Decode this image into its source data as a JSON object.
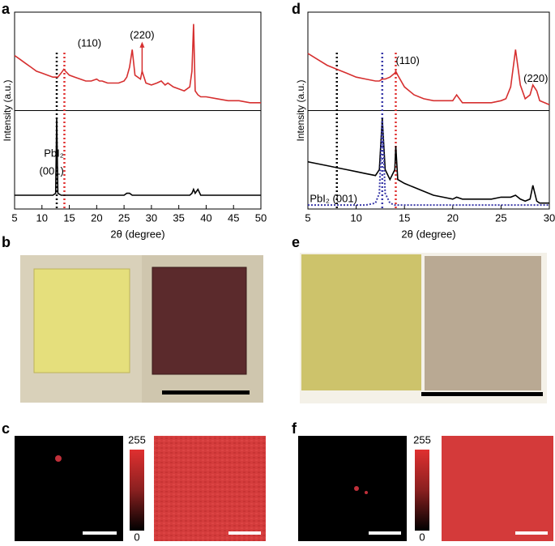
{
  "figure": {
    "panel_labels": [
      "a",
      "b",
      "c",
      "d",
      "e",
      "f"
    ],
    "colorbar": {
      "max": 255,
      "min": 0
    }
  },
  "chart_data": [
    {
      "type": "line",
      "x_label": "2θ (degree)",
      "y_label": "Intensity (a.u.)",
      "x": [
        5,
        6,
        7,
        8,
        9,
        10,
        11,
        12,
        12.5,
        12.7,
        12.9,
        13.5,
        14,
        14.3,
        15,
        16,
        17,
        18,
        19,
        20,
        20.5,
        21,
        22,
        23,
        24,
        25,
        25.5,
        26,
        26.5,
        27,
        28,
        28.3,
        29,
        30,
        31,
        31.8,
        32.5,
        33,
        34,
        35,
        36,
        37,
        37.4,
        37.7,
        38,
        38.5,
        39,
        40,
        42,
        44,
        46,
        48,
        50
      ],
      "xlim": [
        5,
        50
      ],
      "xticks": [
        5,
        10,
        15,
        20,
        25,
        30,
        35,
        40,
        45,
        50
      ],
      "ylim": [
        0,
        100
      ],
      "series": [
        {
          "color": "#d62f2f",
          "values": [
            78,
            76,
            74,
            72,
            70,
            69,
            68,
            67,
            67,
            67,
            67,
            69,
            71,
            70,
            68,
            67,
            66,
            65,
            65,
            66,
            65,
            65,
            64,
            64,
            64,
            65,
            67,
            72,
            81,
            68,
            66,
            70,
            64,
            63,
            64,
            65,
            63,
            64,
            62,
            61,
            60,
            62,
            70,
            94,
            60,
            58,
            57,
            57,
            56,
            55,
            55,
            54,
            54
          ]
        },
        {
          "color": "#000000",
          "values": [
            7,
            7,
            7,
            7,
            7,
            7,
            7,
            7,
            8,
            46,
            8,
            7,
            7,
            7,
            7,
            7,
            7,
            7,
            7,
            7,
            7,
            7,
            7,
            7,
            7,
            7,
            8,
            8,
            7,
            7,
            7,
            7,
            7,
            7,
            7,
            7,
            7,
            7,
            7,
            7,
            7,
            7,
            8,
            10,
            8,
            10,
            7,
            7,
            7,
            7,
            7,
            7,
            7
          ]
        }
      ],
      "vlines": [
        {
          "x": 12.7,
          "color": "#000000"
        },
        {
          "x": 14.1,
          "color": "#e03030"
        }
      ],
      "annotations": [
        {
          "text": "(110)",
          "color": "#d62f2f"
        },
        {
          "text": "(220)",
          "color": "#d62f2f"
        },
        {
          "text": "PbI₂",
          "color": "#000000"
        },
        {
          "text": "(001)",
          "color": "#000000"
        }
      ]
    },
    {
      "type": "line",
      "x_label": "2θ (degree)",
      "y_label": "Intensity (a.u.)",
      "x": [
        5,
        6,
        7,
        8,
        9,
        10,
        11,
        12,
        12.4,
        12.7,
        13,
        13.5,
        14,
        14.1,
        14.3,
        15,
        16,
        17,
        18,
        19,
        20,
        20.4,
        21,
        22,
        23,
        24,
        25,
        25.5,
        26,
        26.5,
        27,
        27.5,
        28,
        28.3,
        28.7,
        29,
        30
      ],
      "xlim": [
        5,
        30
      ],
      "xticks": [
        5,
        10,
        15,
        20,
        25,
        30
      ],
      "ylim": [
        0,
        100
      ],
      "series": [
        {
          "color": "#d62f2f",
          "values": [
            79,
            76,
            73,
            71,
            69,
            67,
            66,
            65,
            65,
            66,
            66,
            67,
            69,
            70,
            68,
            62,
            58,
            56,
            55,
            55,
            55,
            58,
            54,
            54,
            54,
            54,
            55,
            56,
            62,
            81,
            63,
            56,
            58,
            63,
            60,
            55,
            53
          ]
        },
        {
          "color": "#000000",
          "values": [
            24,
            23,
            22,
            21,
            20,
            19,
            18,
            17,
            20,
            46,
            20,
            15,
            20,
            32,
            15,
            13,
            11,
            9,
            7,
            6,
            5,
            6,
            5,
            5,
            5,
            5,
            6,
            6,
            6,
            7,
            5,
            4,
            5,
            12,
            4,
            3,
            3
          ]
        },
        {
          "color": "#3a3aa8",
          "dash": "dotted",
          "values": [
            2,
            2,
            2,
            2,
            2,
            2,
            2,
            3,
            8,
            45,
            8,
            3,
            2,
            2,
            2,
            2,
            2,
            2,
            2,
            2,
            2,
            2,
            2,
            2,
            2,
            2,
            2,
            2,
            2,
            2,
            2,
            2,
            2,
            2,
            2,
            2,
            2
          ]
        }
      ],
      "vlines": [
        {
          "x": 8,
          "color": "#000000"
        },
        {
          "x": 12.7,
          "color": "#3a3aa8"
        },
        {
          "x": 14.1,
          "color": "#e03030"
        }
      ],
      "annotations": [
        {
          "text": "(110)",
          "color": "#d62f2f"
        },
        {
          "text": "(220)",
          "color": "#d62f2f"
        },
        {
          "text": "PbI₂ (001)",
          "color": "#3a3aa8"
        }
      ]
    }
  ]
}
